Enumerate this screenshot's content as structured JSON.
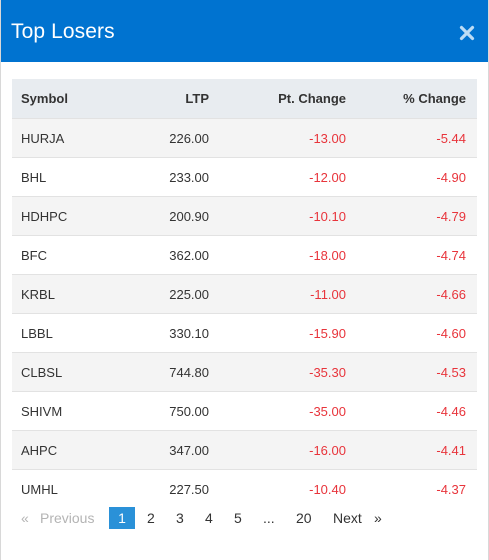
{
  "modal": {
    "title": "Top Losers",
    "close_icon": "close-icon"
  },
  "table": {
    "columns": {
      "symbol": "Symbol",
      "ltp": "LTP",
      "pt_change": "Pt. Change",
      "pct_change": "% Change"
    },
    "rows": [
      {
        "symbol": "HURJA",
        "ltp": "226.00",
        "pt_change": "-13.00",
        "pct_change": "-5.44"
      },
      {
        "symbol": "BHL",
        "ltp": "233.00",
        "pt_change": "-12.00",
        "pct_change": "-4.90"
      },
      {
        "symbol": "HDHPC",
        "ltp": "200.90",
        "pt_change": "-10.10",
        "pct_change": "-4.79"
      },
      {
        "symbol": "BFC",
        "ltp": "362.00",
        "pt_change": "-18.00",
        "pct_change": "-4.74"
      },
      {
        "symbol": "KRBL",
        "ltp": "225.00",
        "pt_change": "-11.00",
        "pct_change": "-4.66"
      },
      {
        "symbol": "LBBL",
        "ltp": "330.10",
        "pt_change": "-15.90",
        "pct_change": "-4.60"
      },
      {
        "symbol": "CLBSL",
        "ltp": "744.80",
        "pt_change": "-35.30",
        "pct_change": "-4.53"
      },
      {
        "symbol": "SHIVM",
        "ltp": "750.00",
        "pt_change": "-35.00",
        "pct_change": "-4.46"
      },
      {
        "symbol": "AHPC",
        "ltp": "347.00",
        "pt_change": "-16.00",
        "pct_change": "-4.41"
      },
      {
        "symbol": "UMHL",
        "ltp": "227.50",
        "pt_change": "-10.40",
        "pct_change": "-4.37"
      }
    ]
  },
  "pagination": {
    "prev_symbol": "«",
    "prev_label": "Previous",
    "pages": [
      "1",
      "2",
      "3",
      "4",
      "5"
    ],
    "active_page": "1",
    "ellipsis": "...",
    "last_page": "20",
    "next_label": "Next",
    "next_symbol": "»"
  },
  "colors": {
    "header_bg": "#0073d0",
    "negative": "#e8343b",
    "active_page_bg": "#2a91d8",
    "table_header_bg": "#e8ecf0"
  }
}
